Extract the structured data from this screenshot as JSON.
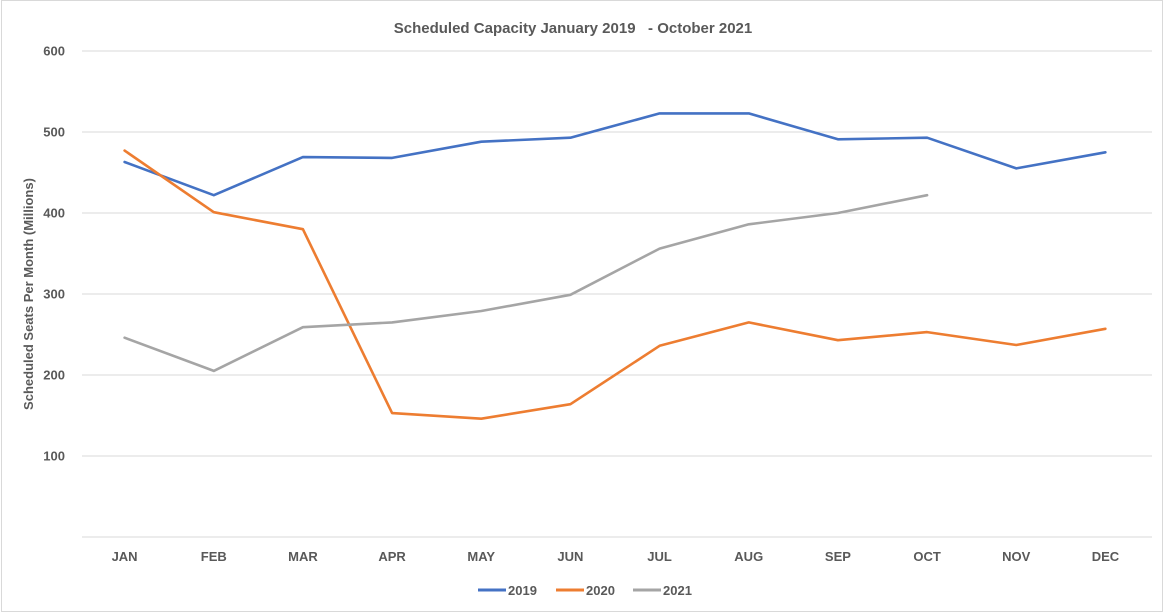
{
  "chart_data": {
    "type": "line",
    "title": "Scheduled Capacity January 2019   - October 2021",
    "xlabel": "",
    "ylabel": "Scheduled Seats Per Month (Millions)",
    "categories": [
      "JAN",
      "FEB",
      "MAR",
      "APR",
      "MAY",
      "JUN",
      "JUL",
      "AUG",
      "SEP",
      "OCT",
      "NOV",
      "DEC"
    ],
    "yticks": [
      100,
      200,
      300,
      400,
      500,
      600
    ],
    "ylim": [
      0,
      600
    ],
    "grid": true,
    "legend_position": "bottom",
    "series": [
      {
        "name": "2019",
        "color": "#4472c4",
        "values": [
          463,
          422,
          469,
          468,
          488,
          493,
          523,
          523,
          491,
          493,
          455,
          475
        ]
      },
      {
        "name": "2020",
        "color": "#ed7d31",
        "values": [
          477,
          401,
          380,
          153,
          146,
          164,
          236,
          265,
          243,
          253,
          237,
          257
        ]
      },
      {
        "name": "2021",
        "color": "#a5a5a5",
        "values": [
          246,
          205,
          259,
          265,
          279,
          299,
          356,
          386,
          400,
          422,
          null,
          null
        ]
      }
    ]
  }
}
